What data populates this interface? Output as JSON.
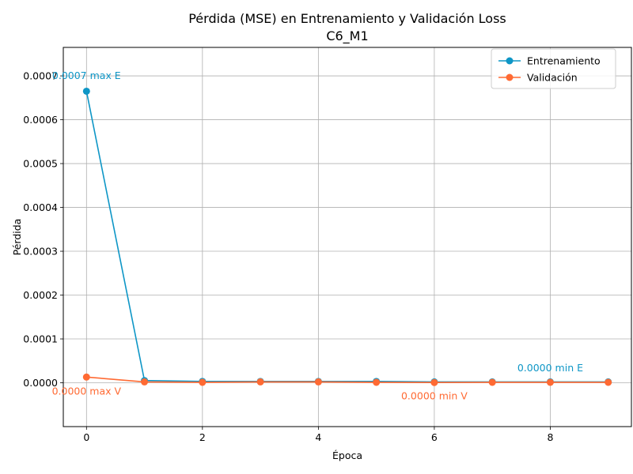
{
  "chart_data": {
    "type": "line",
    "title": "Pérdida (MSE) en Entrenamiento y Validación Loss",
    "subtitle": "C6_M1",
    "xlabel": "Época",
    "ylabel": "Pérdida",
    "xlim": [
      -0.4,
      9.4
    ],
    "ylim": [
      -0.0001,
      0.000765
    ],
    "xticks": [
      0,
      2,
      4,
      6,
      8
    ],
    "xtick_labels": [
      "0",
      "2",
      "4",
      "6",
      "8"
    ],
    "yticks": [
      0,
      0.0001,
      0.0002,
      0.0003,
      0.0004,
      0.0005,
      0.0006,
      0.0007
    ],
    "ytick_labels": [
      "0.0000",
      "0.0001",
      "0.0002",
      "0.0003",
      "0.0004",
      "0.0005",
      "0.0006",
      "0.0007"
    ],
    "grid": true,
    "legend_position": "top-right",
    "x": [
      0,
      1,
      2,
      3,
      4,
      5,
      6,
      7,
      8,
      9
    ],
    "series": [
      {
        "name": "Entrenamiento",
        "color": "#0e96c6",
        "values": [
          0.000665,
          5e-06,
          3e-06,
          3e-06,
          3e-06,
          3e-06,
          2e-06,
          2e-06,
          2e-06,
          2e-06
        ]
      },
      {
        "name": "Validación",
        "color": "#ff6a33",
        "values": [
          1.3e-05,
          2e-06,
          1e-06,
          2e-06,
          2e-06,
          1e-06,
          5e-07,
          1e-06,
          1e-06,
          1e-06
        ]
      }
    ],
    "annotations": [
      {
        "text": "0.0007 max E",
        "series": 0,
        "x": 0,
        "y": 0.0007
      },
      {
        "text": "0.0000 max V",
        "series": 1,
        "x": 0,
        "y": -2e-05
      },
      {
        "text": "0.0000 min E",
        "series": 0,
        "x": 8.0,
        "y": 3.3e-05
      },
      {
        "text": "0.0000 min V",
        "series": 1,
        "x": 6.0,
        "y": -3.1e-05
      }
    ]
  }
}
